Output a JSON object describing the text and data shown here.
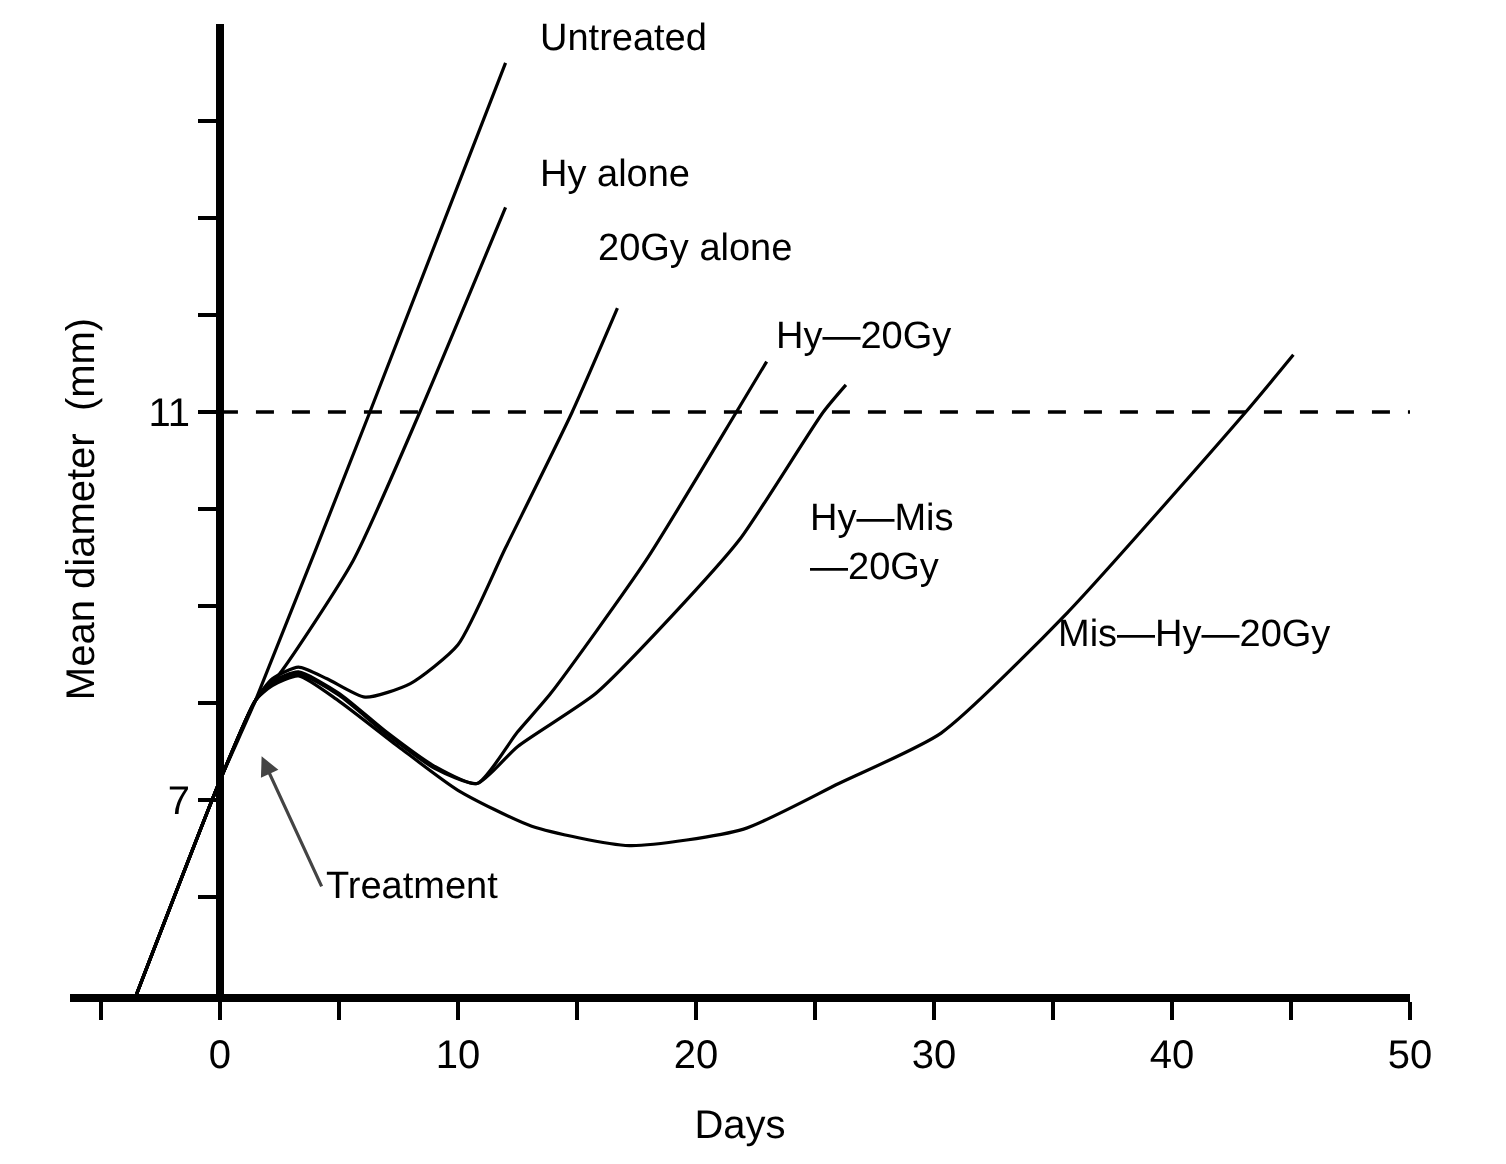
{
  "chart_data": {
    "type": "line",
    "xlabel": "Days",
    "ylabel": "Mean diameter  (mm)",
    "xlim": [
      -6.3,
      50
    ],
    "xticks": [
      {
        "value": -5,
        "label": null
      },
      0,
      {
        "value": 5,
        "label": null
      },
      10,
      {
        "value": 15,
        "label": null
      },
      20,
      {
        "value": 25,
        "label": null
      },
      30,
      {
        "value": 35,
        "label": null
      },
      40,
      {
        "value": 45,
        "label": null
      },
      50
    ],
    "ylim": [
      5,
      15
    ],
    "yticks": [
      {
        "value": 6,
        "label": null
      },
      7,
      {
        "value": 8,
        "label": null
      },
      {
        "value": 9,
        "label": null
      },
      {
        "value": 10,
        "label": null
      },
      11,
      {
        "value": 12,
        "label": null
      },
      {
        "value": 13,
        "label": null
      },
      {
        "value": 14,
        "label": null
      }
    ],
    "grid": false,
    "legend": false,
    "line_style": "solid",
    "series": [
      {
        "name": "Untreated",
        "color": "#000000",
        "x": [
          -3.5,
          0,
          1.5,
          6.3,
          12.0
        ],
        "values": [
          5.0,
          7.2,
          8.03,
          11,
          14.6
        ]
      },
      {
        "name": "Hy alone",
        "color": "#000000",
        "x": [
          -3.5,
          0,
          1.5,
          2.5,
          5.6,
          8.4,
          12.0
        ],
        "values": [
          5.0,
          7.2,
          8.03,
          8.3,
          9.47,
          11,
          13.11
        ]
      },
      {
        "name": "20Gy alone",
        "color": "#000000",
        "x": [
          -3.5,
          0,
          1.5,
          2.2,
          3.3,
          4.5,
          6.1,
          8.0,
          10.0,
          12.0,
          14.8,
          16.7
        ],
        "values": [
          5.0,
          7.2,
          8.03,
          8.25,
          8.37,
          8.25,
          8.06,
          8.2,
          8.6,
          9.6,
          11,
          12.07
        ]
      },
      {
        "name": "Hy—20Gy",
        "color": "#000000",
        "x": [
          -3.5,
          0,
          1.5,
          2.2,
          3.3,
          5,
          7,
          9,
          10.8,
          12.5,
          13.9,
          17.9,
          21.7,
          22.97
        ],
        "values": [
          5.0,
          7.2,
          8.03,
          8.22,
          8.32,
          8.1,
          7.7,
          7.35,
          7.17,
          7.7,
          8.1,
          9.47,
          11,
          11.52
        ]
      },
      {
        "name": "Hy—Mis\n—20Gy",
        "color": "#000000",
        "x": [
          -3.5,
          0,
          1.5,
          2.2,
          3.3,
          5,
          7,
          9,
          10.8,
          12.5,
          15.8,
          19,
          21.85,
          25.35,
          26.3
        ],
        "values": [
          5.0,
          7.2,
          8.03,
          8.2,
          8.3,
          8.08,
          7.68,
          7.33,
          7.17,
          7.55,
          8.1,
          8.9,
          9.69,
          11,
          11.28
        ]
      },
      {
        "name": "Mis—Hy—20Gy",
        "color": "#000000",
        "x": [
          -3.5,
          0,
          1.5,
          2.2,
          3.3,
          5,
          7.5,
          10,
          13.1,
          17.2,
          22,
          26,
          30.3,
          35.6,
          43.1,
          45.1
        ],
        "values": [
          5.0,
          7.2,
          8.03,
          8.18,
          8.28,
          8.02,
          7.55,
          7.1,
          6.73,
          6.53,
          6.7,
          7.17,
          7.69,
          8.93,
          11,
          11.59
        ]
      }
    ],
    "ref_lines": [
      {
        "axis": "y",
        "value": 11,
        "line_style": "dashed",
        "color": "#000000"
      }
    ],
    "annotations": [
      "Treatment"
    ]
  }
}
